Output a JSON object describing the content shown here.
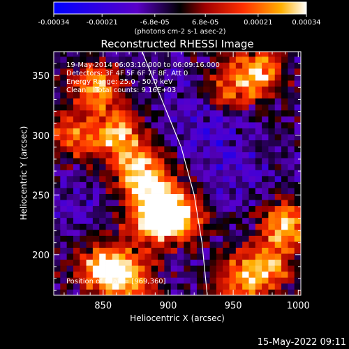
{
  "chart_data": {
    "type": "heatmap",
    "title": "Reconstructed RHESSI Image",
    "xlabel": "Heliocentric X (arcsec)",
    "ylabel": "Heliocentric Y (arcsec)",
    "xlim": [
      812,
      1002
    ],
    "ylim": [
      166,
      370
    ],
    "x_ticks": [
      {
        "v": 850,
        "label": "850"
      },
      {
        "v": 900,
        "label": "900"
      },
      {
        "v": 950,
        "label": "950"
      },
      {
        "v": 1000,
        "label": "1000"
      }
    ],
    "y_ticks": [
      {
        "v": 200,
        "label": "200"
      },
      {
        "v": 250,
        "label": "250"
      },
      {
        "v": 300,
        "label": "300"
      },
      {
        "v": 350,
        "label": "350"
      }
    ],
    "annotations": [
      "19-May-2014 06:03:16.000 to 06:09:16.000",
      "Detectors: 3F 4F 5F 6F 7F 8F, Att 0",
      "Energy Range: 25.0 - 50.0 keV",
      "Clean    Total counts: 9.16E+03"
    ],
    "peak_label": "Position of Peak = [969,360]",
    "peak_position": [
      969,
      360
    ],
    "limb_curve": [
      [
        880,
        370
      ],
      [
        895,
        330
      ],
      [
        910,
        290
      ],
      [
        920,
        250
      ],
      [
        926,
        210
      ],
      [
        930,
        166
      ]
    ],
    "colorbar": {
      "min": -0.00034,
      "max": 0.00034,
      "ticks": [
        {
          "v": -0.00034,
          "label": "-0.00034"
        },
        {
          "v": -0.00021,
          "label": "-0.00021"
        },
        {
          "v": -6.8e-05,
          "label": "-6.8e-05"
        },
        {
          "v": 6.8e-05,
          "label": "6.8e-05"
        },
        {
          "v": 0.00021,
          "label": "0.00021"
        },
        {
          "v": 0.00034,
          "label": "0.00034"
        }
      ],
      "unit_label": "(photons cm-2 s-1 asec-2)"
    },
    "bright_regions": [
      {
        "x": 845,
        "y": 340,
        "w": 0.85
      },
      {
        "x": 860,
        "y": 300,
        "w": 0.9
      },
      {
        "x": 878,
        "y": 270,
        "w": 1.0
      },
      {
        "x": 895,
        "y": 245,
        "w": 0.95
      },
      {
        "x": 910,
        "y": 230,
        "w": 0.8
      },
      {
        "x": 885,
        "y": 225,
        "w": 0.7
      },
      {
        "x": 850,
        "y": 190,
        "w": 0.9
      },
      {
        "x": 868,
        "y": 180,
        "w": 0.85
      },
      {
        "x": 990,
        "y": 225,
        "w": 0.9
      },
      {
        "x": 975,
        "y": 190,
        "w": 0.8
      },
      {
        "x": 955,
        "y": 178,
        "w": 0.7
      },
      {
        "x": 970,
        "y": 352,
        "w": 0.85
      },
      {
        "x": 945,
        "y": 340,
        "w": 0.6
      },
      {
        "x": 825,
        "y": 300,
        "w": 0.6
      }
    ],
    "dark_regions": [
      {
        "x": 935,
        "y": 300,
        "w": 0.9
      },
      {
        "x": 950,
        "y": 260,
        "w": 0.8
      },
      {
        "x": 915,
        "y": 335,
        "w": 0.7
      },
      {
        "x": 830,
        "y": 240,
        "w": 0.6
      }
    ]
  },
  "footer": {
    "timestamp": "15-May-2022 09:11"
  },
  "colors": {
    "background": "#000000",
    "axis": "#ffffff",
    "limb": "#ffffff"
  }
}
